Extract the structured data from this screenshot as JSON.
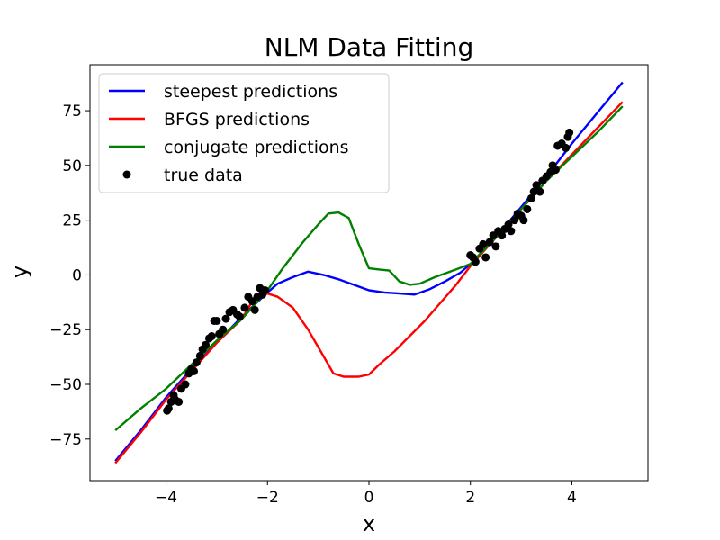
{
  "chart_data": {
    "type": "line",
    "title": "NLM Data Fitting",
    "xlabel": "x",
    "ylabel": "y",
    "xlim": [
      -5.5,
      5.5
    ],
    "ylim": [
      -94,
      96
    ],
    "xticks": [
      -4,
      -2,
      0,
      2,
      4
    ],
    "xtick_labels": [
      "−4",
      "−2",
      "0",
      "2",
      "4"
    ],
    "yticks": [
      -75,
      -50,
      -25,
      0,
      25,
      50,
      75
    ],
    "ytick_labels": [
      "−75",
      "−50",
      "−25",
      "0",
      "25",
      "50",
      "75"
    ],
    "grid": false,
    "legend_position": "upper-left",
    "series": [
      {
        "name": "steepest predictions",
        "kind": "line",
        "color": "#0000ff",
        "points": [
          [
            -5,
            -85
          ],
          [
            -4.5,
            -71
          ],
          [
            -4,
            -56
          ],
          [
            -3.5,
            -43
          ],
          [
            -3,
            -31
          ],
          [
            -2.5,
            -19
          ],
          [
            -2,
            -8
          ],
          [
            -1.8,
            -4
          ],
          [
            -1.5,
            -1
          ],
          [
            -1.2,
            1.5
          ],
          [
            -0.9,
            0
          ],
          [
            -0.6,
            -2
          ],
          [
            -0.3,
            -4.5
          ],
          [
            0,
            -7
          ],
          [
            0.3,
            -8
          ],
          [
            0.6,
            -8.5
          ],
          [
            0.9,
            -9
          ],
          [
            1.2,
            -6.5
          ],
          [
            1.5,
            -3
          ],
          [
            1.8,
            1
          ],
          [
            2,
            5
          ],
          [
            2.5,
            17
          ],
          [
            3,
            31
          ],
          [
            3.5,
            45
          ],
          [
            4,
            60
          ],
          [
            4.5,
            74
          ],
          [
            5,
            88
          ]
        ]
      },
      {
        "name": "BFGS predictions",
        "kind": "line",
        "color": "#ff0000",
        "points": [
          [
            -5,
            -86
          ],
          [
            -4.5,
            -72
          ],
          [
            -4,
            -57
          ],
          [
            -3.5,
            -44
          ],
          [
            -3,
            -31
          ],
          [
            -2.5,
            -20
          ],
          [
            -2.3,
            -12
          ],
          [
            -2,
            -8.5
          ],
          [
            -1.8,
            -10
          ],
          [
            -1.5,
            -15
          ],
          [
            -1.2,
            -25
          ],
          [
            -0.9,
            -37
          ],
          [
            -0.7,
            -45
          ],
          [
            -0.5,
            -46.5
          ],
          [
            -0.2,
            -46.5
          ],
          [
            0,
            -45.5
          ],
          [
            0.2,
            -41
          ],
          [
            0.5,
            -35
          ],
          [
            0.8,
            -28
          ],
          [
            1.1,
            -21
          ],
          [
            1.4,
            -13
          ],
          [
            1.7,
            -5
          ],
          [
            2,
            4
          ],
          [
            2.5,
            17
          ],
          [
            3,
            30
          ],
          [
            3.5,
            43
          ],
          [
            4,
            55
          ],
          [
            4.5,
            67
          ],
          [
            5,
            79
          ]
        ]
      },
      {
        "name": "conjugate predictions",
        "kind": "line",
        "color": "#008000",
        "points": [
          [
            -5,
            -71
          ],
          [
            -4.5,
            -61
          ],
          [
            -4,
            -52
          ],
          [
            -3.5,
            -41
          ],
          [
            -3,
            -30
          ],
          [
            -2.5,
            -20
          ],
          [
            -2,
            -7
          ],
          [
            -1.7,
            3
          ],
          [
            -1.3,
            15
          ],
          [
            -1,
            23
          ],
          [
            -0.8,
            28
          ],
          [
            -0.6,
            28.5
          ],
          [
            -0.4,
            26
          ],
          [
            -0.2,
            14
          ],
          [
            0,
            3
          ],
          [
            0.2,
            2.5
          ],
          [
            0.4,
            2
          ],
          [
            0.6,
            -3
          ],
          [
            0.8,
            -4.5
          ],
          [
            1,
            -4
          ],
          [
            1.3,
            -1
          ],
          [
            1.6,
            1.5
          ],
          [
            2,
            5
          ],
          [
            2.5,
            17
          ],
          [
            3,
            30
          ],
          [
            3.5,
            43
          ],
          [
            4,
            54
          ],
          [
            4.5,
            65
          ],
          [
            5,
            77
          ]
        ]
      },
      {
        "name": "true data",
        "kind": "scatter",
        "color": "#000000",
        "points": [
          [
            -3.98,
            -62
          ],
          [
            -3.95,
            -61
          ],
          [
            -3.9,
            -58
          ],
          [
            -3.85,
            -55
          ],
          [
            -3.82,
            -57
          ],
          [
            -3.75,
            -58
          ],
          [
            -3.7,
            -52
          ],
          [
            -3.62,
            -50
          ],
          [
            -3.55,
            -45
          ],
          [
            -3.5,
            -43
          ],
          [
            -3.45,
            -44
          ],
          [
            -3.4,
            -40
          ],
          [
            -3.33,
            -37
          ],
          [
            -3.28,
            -34
          ],
          [
            -3.22,
            -32
          ],
          [
            -3.15,
            -29
          ],
          [
            -3.1,
            -28
          ],
          [
            -3.05,
            -21
          ],
          [
            -3.0,
            -21
          ],
          [
            -2.95,
            -27
          ],
          [
            -2.88,
            -25
          ],
          [
            -2.82,
            -20
          ],
          [
            -2.75,
            -17
          ],
          [
            -2.68,
            -16
          ],
          [
            -2.6,
            -18
          ],
          [
            -2.55,
            -19
          ],
          [
            -2.45,
            -15
          ],
          [
            -2.38,
            -10
          ],
          [
            -2.3,
            -12
          ],
          [
            -2.25,
            -16
          ],
          [
            -2.2,
            -10
          ],
          [
            -2.15,
            -6
          ],
          [
            -2.1,
            -9
          ],
          [
            -2.05,
            -7
          ],
          [
            2.0,
            9
          ],
          [
            2.05,
            8
          ],
          [
            2.1,
            6
          ],
          [
            2.18,
            12
          ],
          [
            2.25,
            14
          ],
          [
            2.3,
            8
          ],
          [
            2.38,
            15
          ],
          [
            2.45,
            18
          ],
          [
            2.5,
            13
          ],
          [
            2.55,
            20
          ],
          [
            2.62,
            18
          ],
          [
            2.68,
            21
          ],
          [
            2.75,
            23
          ],
          [
            2.8,
            20
          ],
          [
            2.87,
            25
          ],
          [
            2.93,
            28
          ],
          [
            3.0,
            27
          ],
          [
            3.05,
            25
          ],
          [
            3.12,
            30
          ],
          [
            3.2,
            35
          ],
          [
            3.25,
            38
          ],
          [
            3.3,
            41
          ],
          [
            3.37,
            38
          ],
          [
            3.42,
            43
          ],
          [
            3.5,
            45
          ],
          [
            3.58,
            47
          ],
          [
            3.62,
            50
          ],
          [
            3.68,
            48
          ],
          [
            3.72,
            59
          ],
          [
            3.8,
            60
          ],
          [
            3.88,
            58
          ],
          [
            3.92,
            63
          ],
          [
            3.95,
            65
          ]
        ]
      }
    ]
  }
}
